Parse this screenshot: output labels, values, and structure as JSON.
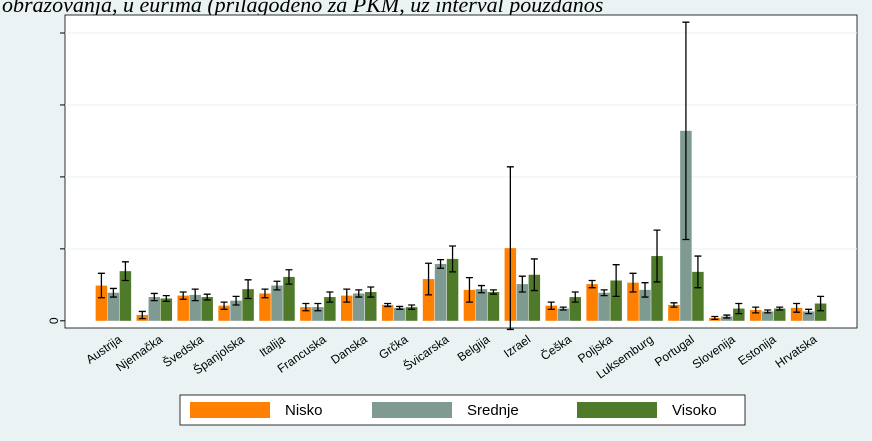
{
  "chart_data": {
    "type": "bar",
    "title": "obrazovanja, u eurima (prilagođeno za PKM, uz interval pouzdanos",
    "categories": [
      "Austrija",
      "Njemačka",
      "Švedska",
      "Španjolska",
      "Italija",
      "Francuska",
      "Danska",
      "Grčka",
      "Švicarska",
      "Belgija",
      "Izrael",
      "Češka",
      "Poljska",
      "Luksemburg",
      "Portugal",
      "Slovenija",
      "Estonija",
      "Hrvatska"
    ],
    "series": [
      {
        "name": "Nisko",
        "color": "#ff8000",
        "values": [
          0.49,
          0.08,
          0.35,
          0.21,
          0.38,
          0.19,
          0.35,
          0.22,
          0.58,
          0.43,
          1.01,
          0.21,
          0.51,
          0.53,
          0.22,
          0.04,
          0.15,
          0.18
        ],
        "errors": [
          0.17,
          0.05,
          0.05,
          0.05,
          0.06,
          0.05,
          0.09,
          0.02,
          0.22,
          0.17,
          1.13,
          0.05,
          0.05,
          0.13,
          0.03,
          0.02,
          0.04,
          0.06
        ]
      },
      {
        "name": "Srednje",
        "color": "#7f9a90",
        "values": [
          0.39,
          0.33,
          0.36,
          0.28,
          0.49,
          0.19,
          0.38,
          0.18,
          0.79,
          0.44,
          0.51,
          0.17,
          0.39,
          0.43,
          2.64,
          0.06,
          0.13,
          0.13
        ],
        "errors": [
          0.06,
          0.05,
          0.08,
          0.06,
          0.06,
          0.05,
          0.05,
          0.02,
          0.06,
          0.05,
          0.11,
          0.02,
          0.04,
          0.1,
          1.51,
          0.02,
          0.02,
          0.03
        ]
      },
      {
        "name": "Visoko",
        "color": "#4f7a2a",
        "values": [
          0.69,
          0.31,
          0.33,
          0.44,
          0.61,
          0.33,
          0.4,
          0.19,
          0.86,
          0.4,
          0.64,
          0.33,
          0.56,
          0.9,
          0.68,
          0.17,
          0.17,
          0.24
        ],
        "errors": [
          0.13,
          0.04,
          0.04,
          0.13,
          0.1,
          0.07,
          0.07,
          0.03,
          0.18,
          0.03,
          0.22,
          0.07,
          0.22,
          0.36,
          0.22,
          0.07,
          0.02,
          0.1
        ]
      }
    ],
    "ylim": [
      -0.1,
      4.25
    ],
    "yticks": [
      0
    ],
    "ygrid": [
      1,
      2,
      3,
      4
    ],
    "grid": true
  }
}
